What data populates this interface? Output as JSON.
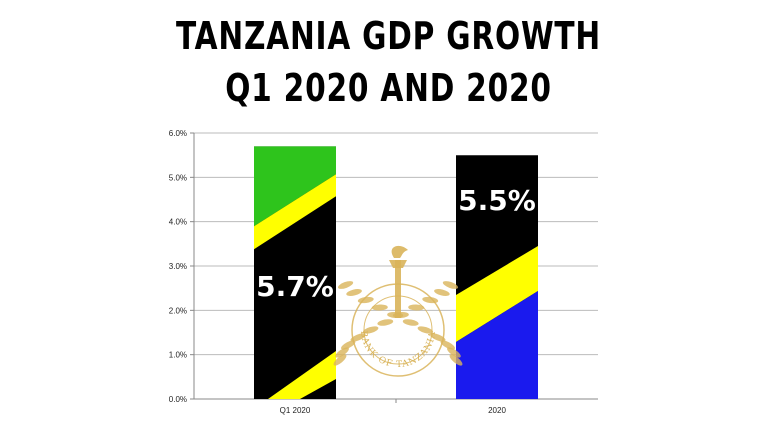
{
  "chart_data": {
    "type": "bar",
    "title_line1": "TANZANIA GDP GROWTH",
    "title_line2": "Q1 2020 AND 2020",
    "categories": [
      "Q1 2020",
      "2020"
    ],
    "values": [
      5.7,
      5.5
    ],
    "data_labels": [
      "5.7%",
      "5.5%"
    ],
    "ylim": [
      0,
      6
    ],
    "yticks": [
      "0.0%",
      "1.0%",
      "2.0%",
      "3.0%",
      "4.0%",
      "5.0%",
      "6.0%"
    ],
    "grid": true,
    "xlabel": "",
    "ylabel": ""
  },
  "watermark": {
    "text": "BANK OF TANZANIA",
    "color": "#d9b45a"
  },
  "colors": {
    "green": "#2ec41c",
    "yellow": "#ffff00",
    "black": "#000000",
    "blue": "#1a1aee"
  }
}
